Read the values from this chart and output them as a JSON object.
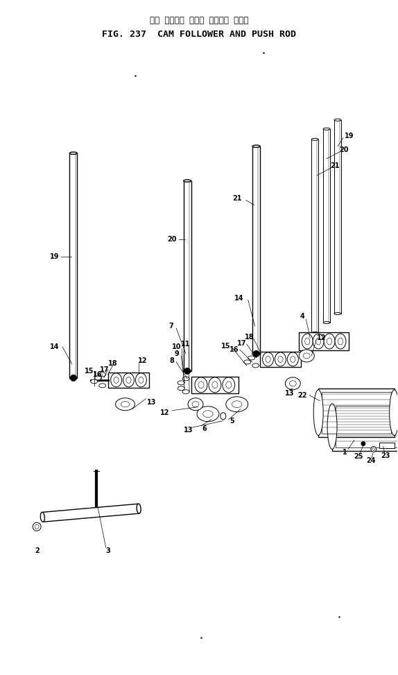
{
  "title_japanese": "カム フォロワ および プッシュ ロッド",
  "title_english": "FIG. 237  CAM FOLLOWER AND PUSH ROD",
  "bg_color": "#ffffff",
  "fig_width": 5.74,
  "fig_height": 9.73,
  "dpi": 100
}
